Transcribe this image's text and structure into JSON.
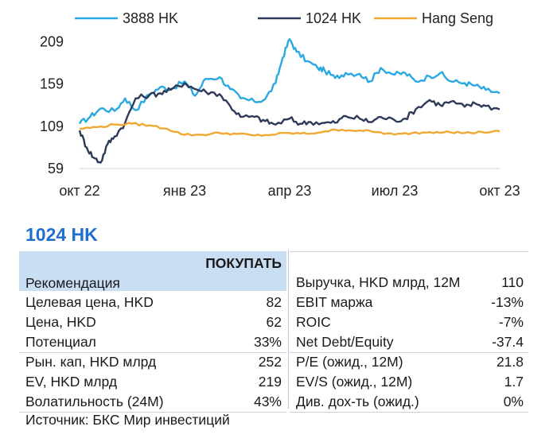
{
  "chart_data": {
    "type": "line",
    "x_ticks": [
      "окт 22",
      "янв 23",
      "апр 23",
      "июл 23",
      "окт 23"
    ],
    "y_ticks": [
      209,
      159,
      109,
      59
    ],
    "ylim": [
      59,
      215
    ],
    "xlim": [
      0,
      12
    ],
    "legend_position": "top",
    "grid": false,
    "series": [
      {
        "name": "3888 HK",
        "color": "#29a9e1",
        "x": [
          0,
          0.3,
          0.6,
          1.0,
          1.3,
          1.6,
          2.0,
          2.3,
          2.6,
          3.0,
          3.3,
          3.6,
          4.0,
          4.3,
          4.6,
          5.0,
          5.3,
          5.6,
          5.8,
          6.0,
          6.2,
          6.5,
          6.8,
          7.0,
          7.3,
          7.6,
          8.0,
          8.3,
          8.6,
          9.0,
          9.3,
          9.6,
          10.0,
          10.3,
          10.6,
          11.0,
          11.3,
          11.6,
          12.0
        ],
        "values": [
          112,
          120,
          130,
          127,
          142,
          128,
          147,
          155,
          153,
          162,
          145,
          165,
          167,
          153,
          142,
          138,
          141,
          160,
          190,
          212,
          197,
          186,
          178,
          175,
          166,
          172,
          171,
          162,
          178,
          170,
          172,
          162,
          168,
          172,
          162,
          160,
          157,
          152,
          148
        ]
      },
      {
        "name": "1024 HK",
        "color": "#2e3a5a",
        "x": [
          0,
          0.2,
          0.4,
          0.6,
          0.8,
          1.0,
          1.3,
          1.6,
          2.0,
          2.3,
          2.6,
          3.0,
          3.3,
          3.6,
          4.0,
          4.3,
          4.6,
          5.0,
          5.3,
          5.6,
          6.0,
          6.3,
          6.6,
          7.0,
          7.3,
          7.6,
          8.0,
          8.3,
          8.6,
          9.0,
          9.3,
          9.6,
          10.0,
          10.3,
          10.6,
          11.0,
          11.3,
          11.6,
          12.0
        ],
        "values": [
          104,
          84,
          72,
          66,
          88,
          97,
          113,
          142,
          146,
          148,
          152,
          160,
          153,
          150,
          147,
          133,
          120,
          120,
          115,
          111,
          118,
          112,
          114,
          113,
          113,
          121,
          118,
          114,
          120,
          116,
          118,
          129,
          140,
          134,
          138,
          132,
          136,
          133,
          129
        ]
      },
      {
        "name": "Hang Seng",
        "color": "#f0a830",
        "x": [
          0,
          0.5,
          1.0,
          1.5,
          2.0,
          2.5,
          3.0,
          3.5,
          4.0,
          4.5,
          5.0,
          5.5,
          6.0,
          6.5,
          7.0,
          7.5,
          8.0,
          8.5,
          9.0,
          9.5,
          10.0,
          10.5,
          11.0,
          11.5,
          12.0
        ],
        "values": [
          106,
          108,
          111,
          112,
          110,
          106,
          99,
          99,
          101,
          100,
          98,
          99,
          101,
          100,
          103,
          105,
          104,
          102,
          99,
          101,
          102,
          103,
          101,
          102,
          103
        ]
      }
    ]
  },
  "title": "1024 HK",
  "left_table": {
    "recommendation_label": "Рекомендация",
    "recommendation_value": "ПОКУПАТЬ",
    "rows": [
      {
        "label": "Целевая цена, HKD",
        "value": "82"
      },
      {
        "label": "Цена, HKD",
        "value": "62"
      },
      {
        "label": "Потенциал",
        "value": "33%"
      },
      {
        "label": "Рын. кап, HKD млрд",
        "value": "252"
      },
      {
        "label": "EV, HKD млрд",
        "value": "219"
      },
      {
        "label": "Волатильность (24M)",
        "value": "43%"
      }
    ]
  },
  "right_table": {
    "rows": [
      {
        "label": "Выручка, HKD млрд, 12M",
        "value": "110"
      },
      {
        "label": "EBIT маржа",
        "value": "-13%"
      },
      {
        "label": "ROIC",
        "value": "-7%"
      },
      {
        "label": "Net Debt/Equity",
        "value": "-37.4"
      },
      {
        "label": "P/E (ожид., 12M)",
        "value": "21.8"
      },
      {
        "label": "EV/S (ожид., 12M)",
        "value": "1.7"
      },
      {
        "label": "Див. дох-ть (ожид.)",
        "value": "0%"
      }
    ]
  },
  "source": "Источник: БКС Мир инвестиций"
}
